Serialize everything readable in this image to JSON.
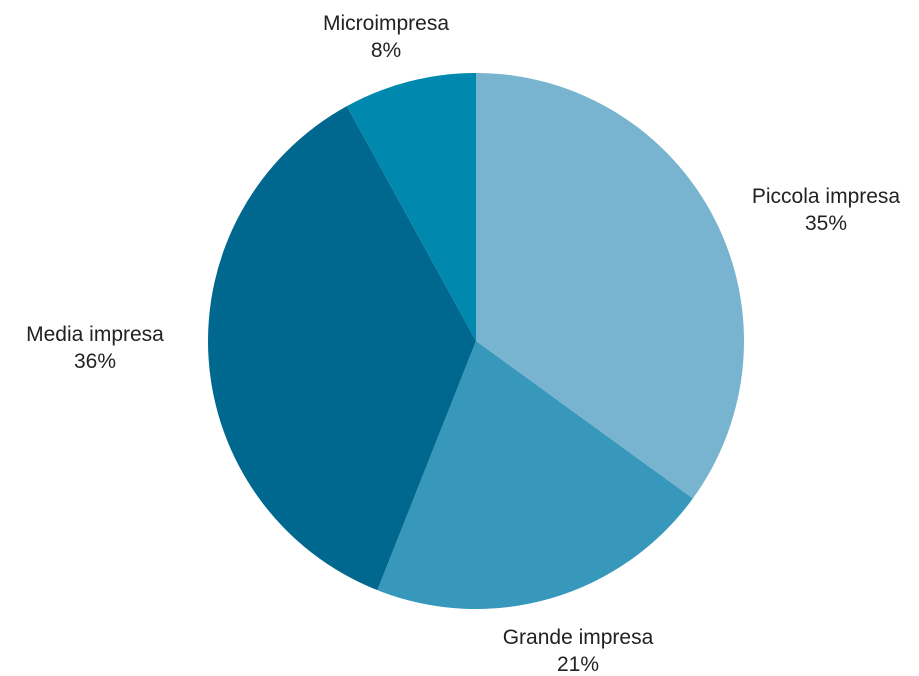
{
  "chart_data": {
    "type": "pie",
    "title": "",
    "start": "top",
    "direction": "clockwise",
    "slices": [
      {
        "name": "Piccola impresa",
        "value": 35,
        "label": "35%",
        "color": "#78b4d0"
      },
      {
        "name": "Grande impresa",
        "value": 21,
        "label": "21%",
        "color": "#3798bc"
      },
      {
        "name": "Media impresa",
        "value": 36,
        "label": "36%",
        "color": "#00678f"
      },
      {
        "name": "Microimpresa",
        "value": 8,
        "label": "8%",
        "color": "#0088ae"
      }
    ]
  }
}
